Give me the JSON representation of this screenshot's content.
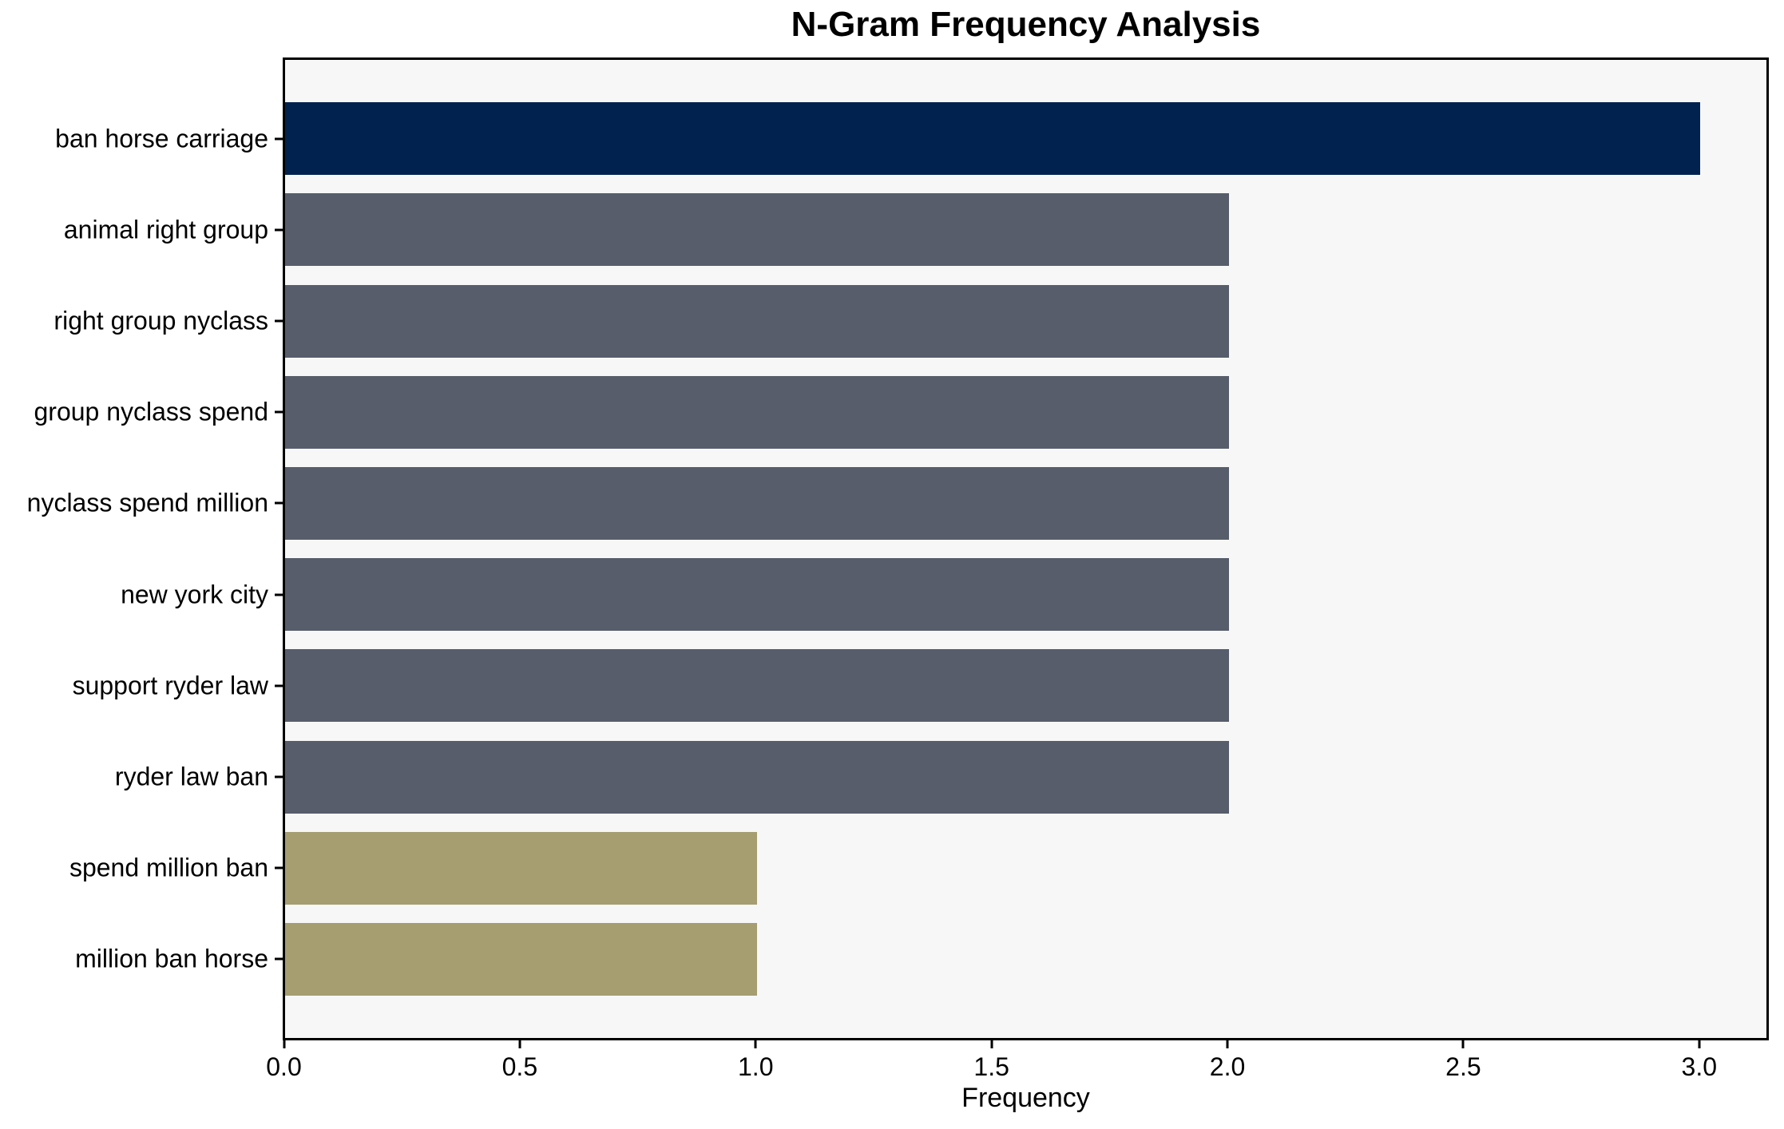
{
  "chart_data": {
    "type": "bar",
    "orientation": "horizontal",
    "title": "N-Gram Frequency Analysis",
    "xlabel": "Frequency",
    "ylabel": "",
    "categories": [
      "ban horse carriage",
      "animal right group",
      "right group nyclass",
      "group nyclass spend",
      "nyclass spend million",
      "new york city",
      "support ryder law",
      "ryder law ban",
      "spend million ban",
      "million ban horse"
    ],
    "values": [
      3.0,
      2.0,
      2.0,
      2.0,
      2.0,
      2.0,
      2.0,
      2.0,
      1.0,
      1.0
    ],
    "bar_colors": [
      "#01224e",
      "#575d6b",
      "#575d6b",
      "#575d6b",
      "#575d6b",
      "#575d6b",
      "#575d6b",
      "#575d6b",
      "#a69d71",
      "#a69d71"
    ],
    "xlim": [
      0,
      3.14
    ],
    "xticks": [
      {
        "value": 0,
        "label": "0.0"
      },
      {
        "value": 0.5,
        "label": "0.5"
      },
      {
        "value": 1,
        "label": "1.0"
      },
      {
        "value": 1.5,
        "label": "1.5"
      },
      {
        "value": 2,
        "label": "2.0"
      },
      {
        "value": 2.5,
        "label": "2.5"
      },
      {
        "value": 3,
        "label": "3.0"
      }
    ],
    "grid": false,
    "legend": null,
    "plot_background": "#f7f7f7",
    "figure_background": "#ffffff",
    "spine_color": "#000000"
  }
}
